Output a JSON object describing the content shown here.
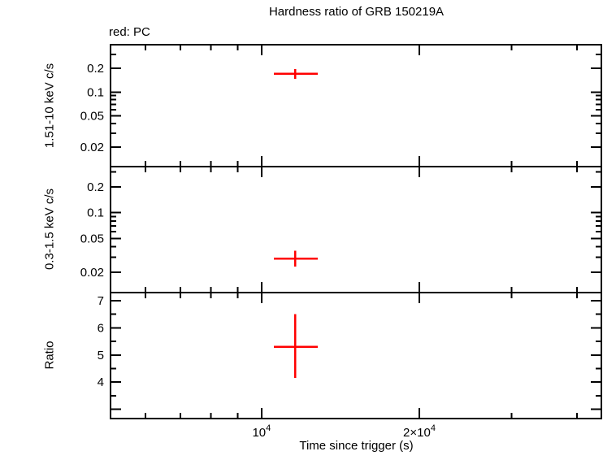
{
  "title": "Hardness ratio of GRB 150219A",
  "annotation": "red: PC",
  "xlabel": "Time since trigger (s)",
  "colors": {
    "data": "#ff0000",
    "axis": "#000000",
    "background": "#ffffff"
  },
  "chart_data": {
    "type": "scatter",
    "grid": false,
    "x_scale": "log",
    "xlabel": "Time since trigger (s)",
    "xlim": [
      5150,
      44500
    ],
    "x_major_ticks": [
      {
        "value": 10000,
        "base": "10",
        "exp": "4"
      },
      {
        "value": 20000,
        "base": "2×10",
        "exp": "4"
      }
    ],
    "x_minor_ticks": [
      6000,
      7000,
      8000,
      9000,
      30000,
      40000
    ],
    "legend": [
      {
        "label": "PC",
        "color": "#ff0000"
      }
    ],
    "panels": [
      {
        "name": "hard-band-rate",
        "ylabel": "1.51-10 keV c/s",
        "y_scale": "log",
        "ylim": [
          0.0113,
          0.4
        ],
        "y_major_ticks": [
          {
            "value": 0.2,
            "label": "0.2"
          },
          {
            "value": 0.1,
            "label": "0.1"
          },
          {
            "value": 0.05,
            "label": "0.05"
          },
          {
            "value": 0.02,
            "label": "0.02"
          }
        ],
        "y_minor_ticks": [
          0.3,
          0.09,
          0.08,
          0.07,
          0.06,
          0.04,
          0.03
        ],
        "series": [
          {
            "name": "PC",
            "color": "#ff0000",
            "points": [
              {
                "x": 11600,
                "x_lo": 10550,
                "x_hi": 12800,
                "y": 0.17,
                "y_lo": 0.148,
                "y_hi": 0.196
              }
            ]
          }
        ]
      },
      {
        "name": "soft-band-rate",
        "ylabel": "0.3-1.5 keV c/s",
        "y_scale": "log",
        "ylim": [
          0.0116,
          0.346
        ],
        "y_major_ticks": [
          {
            "value": 0.2,
            "label": "0.2"
          },
          {
            "value": 0.1,
            "label": "0.1"
          },
          {
            "value": 0.05,
            "label": "0.05"
          },
          {
            "value": 0.02,
            "label": "0.02"
          }
        ],
        "y_minor_ticks": [
          0.3,
          0.09,
          0.08,
          0.07,
          0.06,
          0.04,
          0.03
        ],
        "series": [
          {
            "name": "PC",
            "color": "#ff0000",
            "points": [
              {
                "x": 11600,
                "x_lo": 10550,
                "x_hi": 12800,
                "y": 0.029,
                "y_lo": 0.0235,
                "y_hi": 0.036
              }
            ]
          }
        ]
      },
      {
        "name": "hardness-ratio",
        "ylabel": "Ratio",
        "y_scale": "linear",
        "ylim": [
          2.66,
          7.3
        ],
        "y_major_ticks": [
          {
            "value": 7,
            "label": "7"
          },
          {
            "value": 6,
            "label": "6"
          },
          {
            "value": 5,
            "label": "5"
          },
          {
            "value": 4,
            "label": "4"
          },
          {
            "value": 3,
            "label": ""
          }
        ],
        "y_minor_ticks": [
          6.5,
          5.5,
          4.5,
          3.5
        ],
        "series": [
          {
            "name": "PC",
            "color": "#ff0000",
            "points": [
              {
                "x": 11600,
                "x_lo": 10550,
                "x_hi": 12800,
                "y": 5.3,
                "y_lo": 4.15,
                "y_hi": 6.5
              }
            ]
          }
        ]
      }
    ]
  }
}
